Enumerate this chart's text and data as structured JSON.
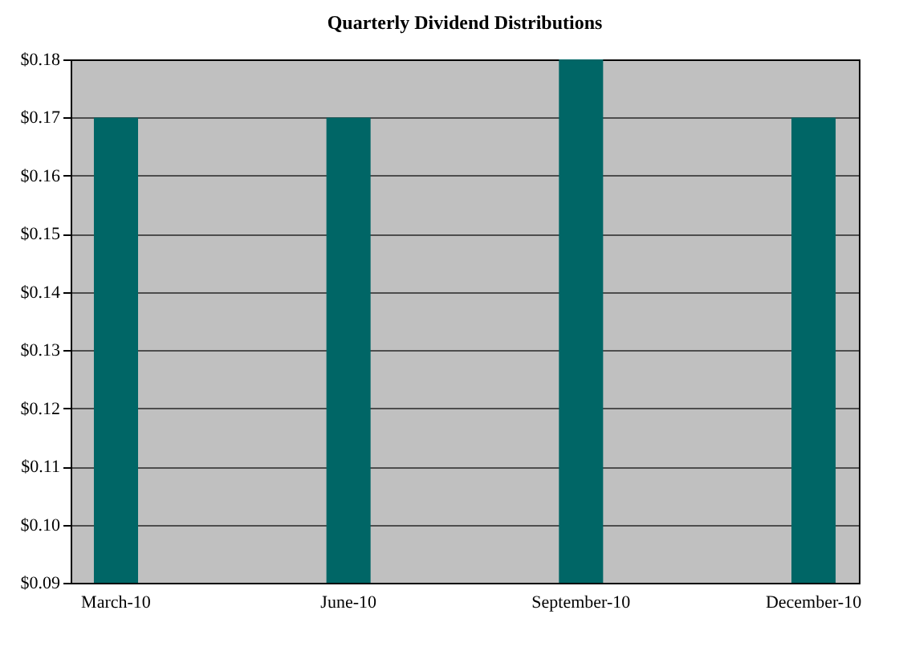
{
  "chart_data": {
    "type": "bar",
    "title": "Quarterly Dividend Distributions",
    "categories": [
      "March-10",
      "June-10",
      "September-10",
      "December-10"
    ],
    "values": [
      0.17,
      0.17,
      0.18,
      0.17
    ],
    "color": "#006666",
    "ylim": [
      0.09,
      0.18
    ],
    "yticks": [
      {
        "value": 0.09,
        "label": "$0.09"
      },
      {
        "value": 0.1,
        "label": "$0.10"
      },
      {
        "value": 0.11,
        "label": "$0.11"
      },
      {
        "value": 0.12,
        "label": "$0.12"
      },
      {
        "value": 0.13,
        "label": "$0.13"
      },
      {
        "value": 0.14,
        "label": "$0.14"
      },
      {
        "value": 0.15,
        "label": "$0.15"
      },
      {
        "value": 0.16,
        "label": "$0.16"
      },
      {
        "value": 0.17,
        "label": "$0.17"
      },
      {
        "value": 0.18,
        "label": "$0.18"
      }
    ],
    "grid": "y"
  }
}
